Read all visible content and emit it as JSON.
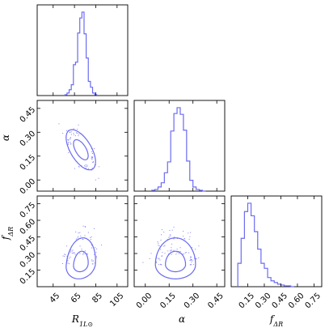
{
  "chart_data": {
    "type": "corner",
    "color": "#6b6bf2",
    "parameters": [
      {
        "key": "R1L",
        "label": "R",
        "label_sub": "1L⊙",
        "range": [
          30,
          115
        ],
        "ticks": [
          45,
          65,
          85,
          105
        ],
        "tick_labels": [
          "45",
          "65",
          "85",
          "105"
        ],
        "mean": 71,
        "sd": 6
      },
      {
        "key": "alpha",
        "label": "α",
        "label_sub": "",
        "range": [
          -0.07,
          0.5
        ],
        "ticks": [
          0.0,
          0.15,
          0.3,
          0.45
        ],
        "tick_labels": [
          "0.00",
          "0.15",
          "0.30",
          "0.45"
        ],
        "mean": 0.19,
        "sd": 0.055
      },
      {
        "key": "fdR",
        "label": "f",
        "label_sub": "ΔR",
        "range": [
          0.0,
          0.82
        ],
        "ticks": [
          0.15,
          0.3,
          0.45,
          0.6,
          0.75
        ],
        "tick_labels": [
          "0.15",
          "0.30",
          "0.45",
          "0.60",
          "0.75"
        ],
        "mean": 0.2,
        "sd": 0.075
      }
    ],
    "histograms": [
      {
        "param": "R1L",
        "bin_edges": [
          56,
          58,
          60,
          62,
          64,
          66,
          68,
          70,
          72,
          74,
          76,
          78,
          80,
          82,
          84,
          86
        ],
        "counts": [
          0.01,
          0.03,
          0.07,
          0.13,
          0.37,
          0.4,
          0.75,
          0.93,
          1.0,
          0.74,
          0.45,
          0.17,
          0.1,
          0.03,
          0.01
        ]
      },
      {
        "param": "alpha",
        "bin_edges": [
          0.04,
          0.06,
          0.08,
          0.1,
          0.12,
          0.14,
          0.16,
          0.18,
          0.2,
          0.22,
          0.24,
          0.26,
          0.28,
          0.3,
          0.32,
          0.34,
          0.36,
          0.38
        ],
        "counts": [
          0.01,
          0.02,
          0.05,
          0.1,
          0.22,
          0.35,
          0.72,
          0.93,
          1.0,
          0.92,
          0.73,
          0.36,
          0.13,
          0.05,
          0.02,
          0.01,
          0.0
        ]
      },
      {
        "param": "fdR",
        "bin_edges": [
          0.06,
          0.09,
          0.12,
          0.15,
          0.18,
          0.21,
          0.24,
          0.27,
          0.3,
          0.33,
          0.36,
          0.39,
          0.42,
          0.45,
          0.48,
          0.51,
          0.54,
          0.57
        ],
        "counts": [
          0.28,
          0.58,
          0.9,
          1.0,
          0.85,
          0.66,
          0.45,
          0.28,
          0.22,
          0.11,
          0.07,
          0.05,
          0.03,
          0.02,
          0.01,
          0.01,
          0.0
        ]
      }
    ],
    "pairs": [
      {
        "x": "R1L",
        "y": "alpha",
        "correlation": -0.6
      },
      {
        "x": "R1L",
        "y": "fdR",
        "correlation": 0.15
      },
      {
        "x": "alpha",
        "y": "fdR",
        "correlation": 0.0
      }
    ],
    "contour_levels_sigma": [
      1,
      2
    ],
    "axis_label_x": [
      "R1L",
      "alpha",
      "fdR"
    ],
    "axis_label_y": [
      "alpha",
      "fdR"
    ]
  }
}
